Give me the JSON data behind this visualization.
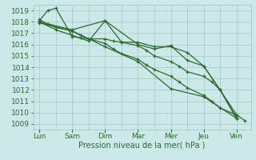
{
  "background_color": "#cce8e8",
  "grid_color": "#aacccc",
  "line_color": "#2d6a2d",
  "xlabel": "Pression niveau de la mer( hPa )",
  "xtick_labels": [
    "Lun",
    "Sam",
    "Dim",
    "Mar",
    "Mer",
    "Jeu",
    "Ven"
  ],
  "xtick_positions": [
    0,
    16,
    32,
    48,
    64,
    80,
    96
  ],
  "ylim": [
    1008.5,
    1019.5
  ],
  "yticks": [
    1009,
    1010,
    1011,
    1012,
    1013,
    1014,
    1015,
    1016,
    1017,
    1018,
    1019
  ],
  "series": [
    {
      "x": [
        0,
        4,
        8,
        16,
        20,
        24,
        32,
        36,
        40,
        48,
        52,
        56,
        64,
        68,
        72,
        80,
        84,
        88,
        96,
        100
      ],
      "y": [
        1018.2,
        1017.8,
        1017.5,
        1017.2,
        1016.8,
        1016.5,
        1016.1,
        1015.6,
        1015.2,
        1014.7,
        1014.2,
        1013.8,
        1013.2,
        1012.7,
        1012.2,
        1011.5,
        1011.0,
        1010.4,
        1009.8,
        1009.3
      ]
    },
    {
      "x": [
        0,
        4,
        8,
        16,
        20,
        24,
        32,
        36,
        40,
        48,
        52,
        56,
        64,
        68,
        72,
        80,
        84,
        88,
        96
      ],
      "y": [
        1018.1,
        1019.0,
        1019.2,
        1016.7,
        1016.6,
        1016.5,
        1016.5,
        1016.3,
        1016.2,
        1015.9,
        1015.5,
        1015.0,
        1014.5,
        1014.1,
        1013.6,
        1013.2,
        1012.7,
        1012.0,
        1009.5
      ]
    },
    {
      "x": [
        0,
        8,
        16,
        24,
        32,
        40,
        48,
        56,
        64,
        72,
        80,
        88,
        96
      ],
      "y": [
        1018.0,
        1017.3,
        1016.8,
        1016.3,
        1018.1,
        1016.2,
        1016.2,
        1015.8,
        1015.8,
        1015.3,
        1014.1,
        1012.0,
        1009.5
      ]
    },
    {
      "x": [
        0,
        16,
        32,
        48,
        56,
        64,
        72,
        80,
        88,
        96
      ],
      "y": [
        1018.0,
        1017.3,
        1018.1,
        1016.0,
        1015.6,
        1015.9,
        1014.6,
        1014.1,
        1012.0,
        1009.8
      ]
    },
    {
      "x": [
        0,
        16,
        32,
        48,
        64,
        80,
        96
      ],
      "y": [
        1017.9,
        1017.2,
        1015.8,
        1014.5,
        1012.1,
        1011.4,
        1009.5
      ]
    }
  ]
}
